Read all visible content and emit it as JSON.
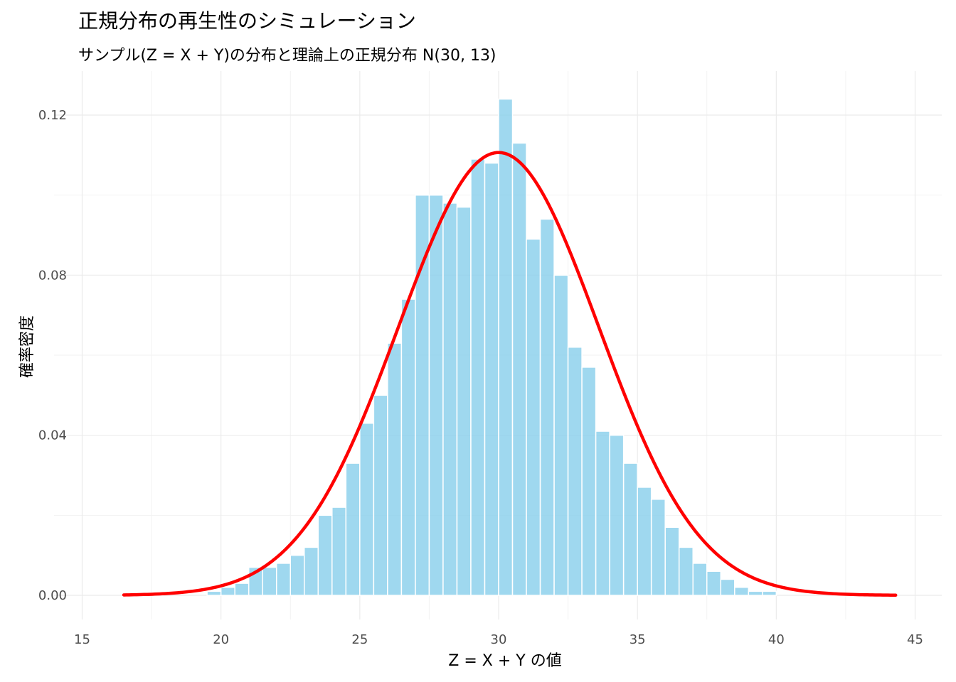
{
  "chart_data": {
    "type": "bar",
    "title": "正規分布の再生性のシミュレーション",
    "subtitle": "サンプル(Z = X + Y)の分布と理論上の正規分布 N(30, 13)",
    "xlabel": "Z = X + Y の値",
    "ylabel": "確率密度",
    "xlim": [
      15,
      45
    ],
    "ylim": [
      0,
      0.13
    ],
    "x_ticks": [
      15,
      20,
      25,
      30,
      35,
      40,
      45
    ],
    "x_tick_labels": [
      "15",
      "20",
      "25",
      "30",
      "35",
      "40",
      "45"
    ],
    "y_ticks": [
      0.0,
      0.04,
      0.08,
      0.12
    ],
    "y_tick_labels": [
      "0.00",
      "0.04",
      "0.08",
      "0.12"
    ],
    "grid": true,
    "histogram": {
      "bin_width": 0.5,
      "bin_starts": [
        19.5,
        20.0,
        20.5,
        21.0,
        21.5,
        22.0,
        22.5,
        23.0,
        23.5,
        24.0,
        24.5,
        25.0,
        25.5,
        26.0,
        26.5,
        27.0,
        27.5,
        28.0,
        28.5,
        29.0,
        29.5,
        30.0,
        30.5,
        31.0,
        31.5,
        32.0,
        32.5,
        33.0,
        33.5,
        34.0,
        34.5,
        35.0,
        35.5,
        36.0,
        36.5,
        37.0,
        37.5,
        38.0,
        38.5,
        39.0,
        39.5,
        40.0,
        40.5
      ],
      "values": [
        0.001,
        0.002,
        0.003,
        0.007,
        0.007,
        0.008,
        0.01,
        0.012,
        0.02,
        0.022,
        0.033,
        0.043,
        0.05,
        0.063,
        0.074,
        0.1,
        0.1,
        0.098,
        0.097,
        0.109,
        0.108,
        0.124,
        0.113,
        0.089,
        0.094,
        0.08,
        0.062,
        0.057,
        0.041,
        0.04,
        0.033,
        0.027,
        0.024,
        0.017,
        0.012,
        0.008,
        0.006,
        0.004,
        0.002,
        0.001,
        0.001,
        0.0,
        0.0
      ],
      "color": "#87CEEB"
    },
    "curve": {
      "mean": 30,
      "variance": 13,
      "x_range": [
        16.5,
        44.3
      ],
      "color": "#FF0000"
    }
  }
}
